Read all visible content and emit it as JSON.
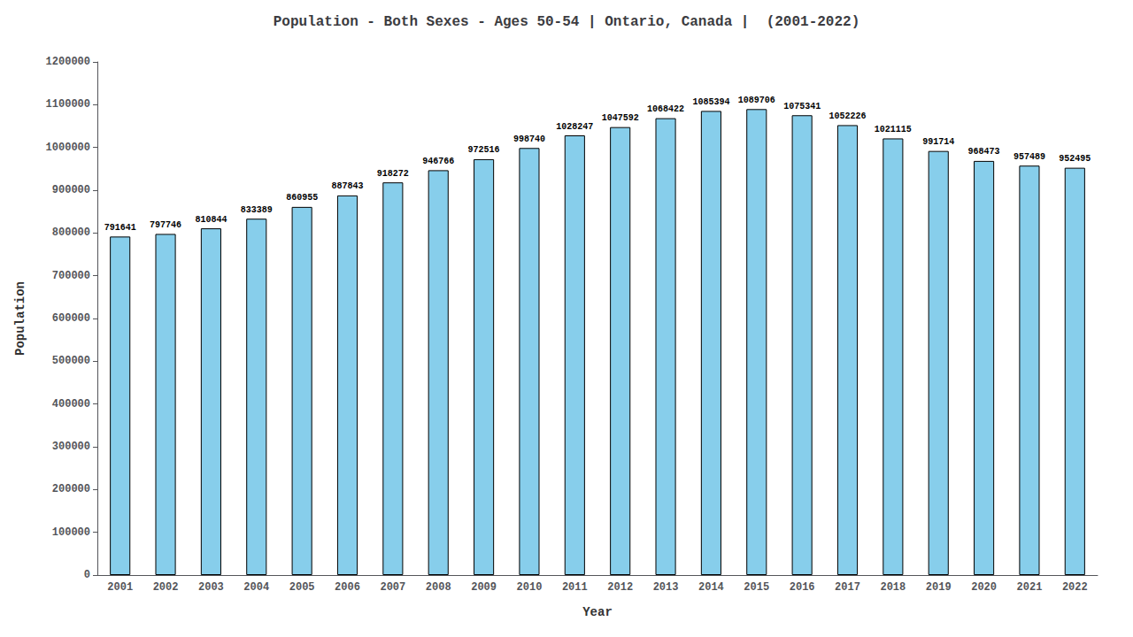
{
  "chart_data": {
    "type": "bar",
    "title": "Population - Both Sexes - Ages 50-54 | Ontario, Canada |  (2001-2022)",
    "categories": [
      "2001",
      "2002",
      "2003",
      "2004",
      "2005",
      "2006",
      "2007",
      "2008",
      "2009",
      "2010",
      "2011",
      "2012",
      "2013",
      "2014",
      "2015",
      "2016",
      "2017",
      "2018",
      "2019",
      "2020",
      "2021",
      "2022"
    ],
    "values": [
      791641,
      797746,
      810844,
      833389,
      860955,
      887843,
      918272,
      946766,
      972516,
      998740,
      1028247,
      1047592,
      1068422,
      1085394,
      1089706,
      1075341,
      1052226,
      1021115,
      991714,
      968473,
      957489,
      952495
    ],
    "color": "#87CEEB",
    "xlabel": "Year",
    "ylabel": "Population",
    "ylim": [
      0,
      1200000
    ],
    "yticks": [
      0,
      100000,
      200000,
      300000,
      400000,
      500000,
      600000,
      700000,
      800000,
      900000,
      1000000,
      1100000,
      1200000
    ],
    "grid": false,
    "data_labels": true
  }
}
